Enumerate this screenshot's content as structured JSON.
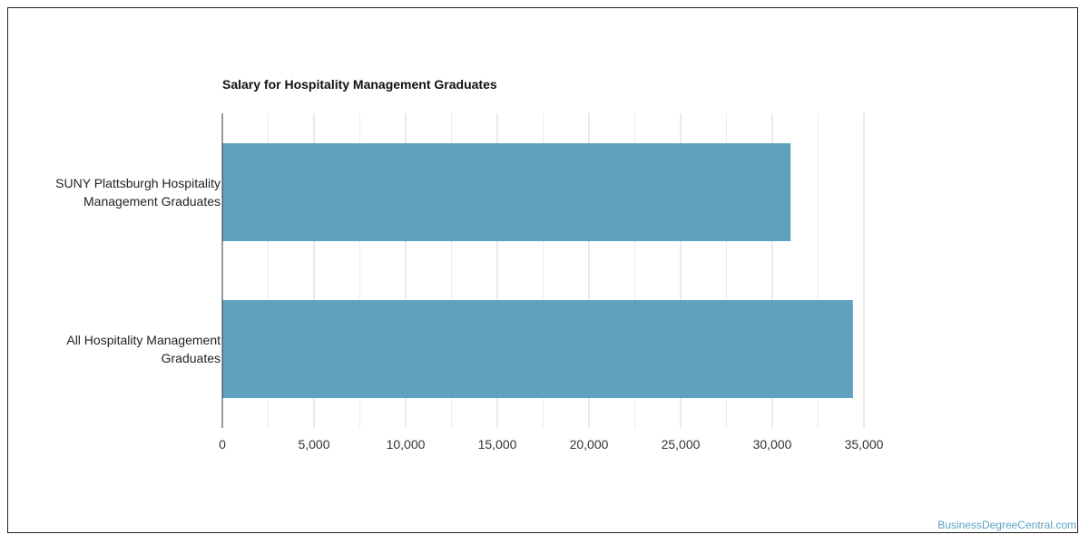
{
  "chart_data": {
    "type": "bar",
    "orientation": "horizontal",
    "title": "Salary for Hospitality Management Graduates",
    "categories": [
      [
        "SUNY Plattsburgh Hospitality",
        "Management Graduates"
      ],
      [
        "All Hospitality Management",
        "Graduates"
      ]
    ],
    "values": [
      31000,
      34400
    ],
    "xlim": [
      0,
      35000
    ],
    "xticks": [
      "0",
      "5,000",
      "10,000",
      "15,000",
      "20,000",
      "25,000",
      "30,000",
      "35,000"
    ],
    "xtick_values": [
      0,
      5000,
      10000,
      15000,
      20000,
      25000,
      30000,
      35000
    ],
    "grid": true,
    "bar_color": "#5ea2bf",
    "legend": "none"
  },
  "footer": {
    "credit": "BusinessDegreeCentral.com"
  },
  "colors": {
    "bar": "#5ea2bf",
    "credit": "#5ca1bf",
    "grid": "#dddddd",
    "axis": "#333333"
  }
}
